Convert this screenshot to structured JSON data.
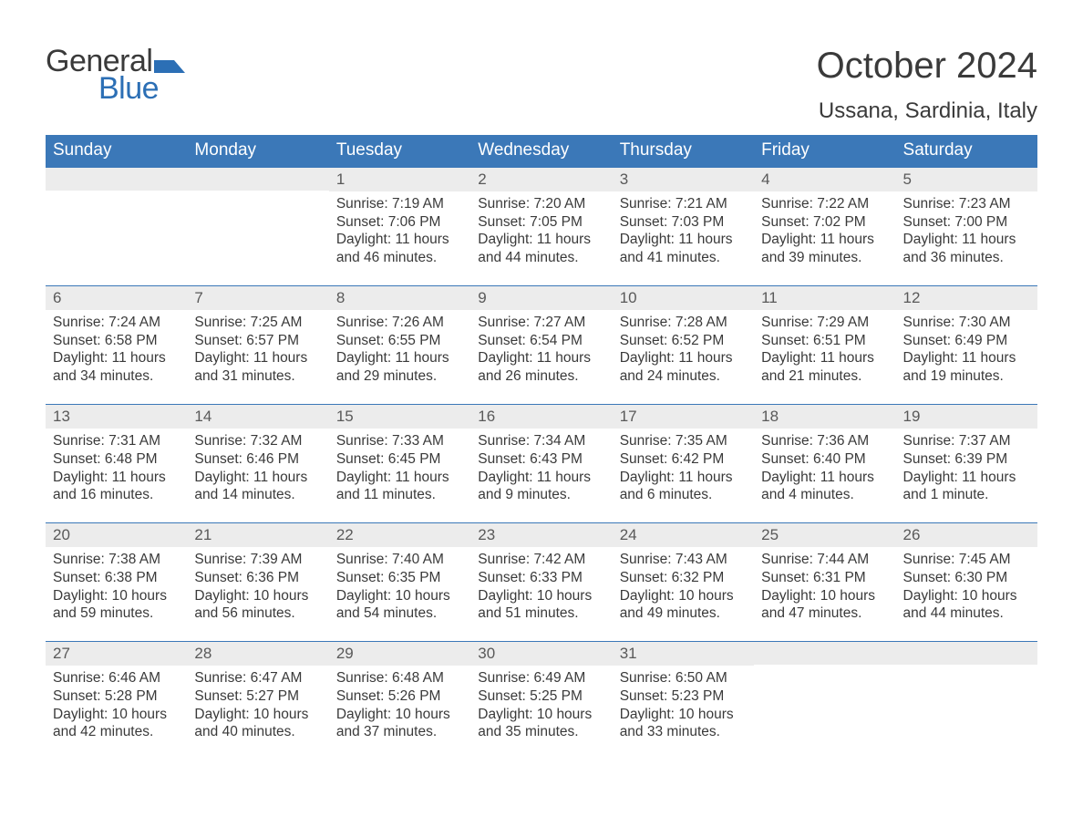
{
  "brand": {
    "word1": "General",
    "word2": "Blue",
    "flag_color": "#2c6fb5"
  },
  "header": {
    "month_title": "October 2024",
    "location": "Ussana, Sardinia, Italy"
  },
  "colors": {
    "header_bar_bg": "#3b78b8",
    "header_bar_text": "#ffffff",
    "day_band_bg": "#ececec",
    "week_divider": "#3b78b8",
    "body_text": "#3a3a3a"
  },
  "weekdays": [
    "Sunday",
    "Monday",
    "Tuesday",
    "Wednesday",
    "Thursday",
    "Friday",
    "Saturday"
  ],
  "weeks": [
    [
      null,
      null,
      {
        "n": "1",
        "sr": "7:19 AM",
        "ss": "7:06 PM",
        "dl": "11 hours and 46 minutes."
      },
      {
        "n": "2",
        "sr": "7:20 AM",
        "ss": "7:05 PM",
        "dl": "11 hours and 44 minutes."
      },
      {
        "n": "3",
        "sr": "7:21 AM",
        "ss": "7:03 PM",
        "dl": "11 hours and 41 minutes."
      },
      {
        "n": "4",
        "sr": "7:22 AM",
        "ss": "7:02 PM",
        "dl": "11 hours and 39 minutes."
      },
      {
        "n": "5",
        "sr": "7:23 AM",
        "ss": "7:00 PM",
        "dl": "11 hours and 36 minutes."
      }
    ],
    [
      {
        "n": "6",
        "sr": "7:24 AM",
        "ss": "6:58 PM",
        "dl": "11 hours and 34 minutes."
      },
      {
        "n": "7",
        "sr": "7:25 AM",
        "ss": "6:57 PM",
        "dl": "11 hours and 31 minutes."
      },
      {
        "n": "8",
        "sr": "7:26 AM",
        "ss": "6:55 PM",
        "dl": "11 hours and 29 minutes."
      },
      {
        "n": "9",
        "sr": "7:27 AM",
        "ss": "6:54 PM",
        "dl": "11 hours and 26 minutes."
      },
      {
        "n": "10",
        "sr": "7:28 AM",
        "ss": "6:52 PM",
        "dl": "11 hours and 24 minutes."
      },
      {
        "n": "11",
        "sr": "7:29 AM",
        "ss": "6:51 PM",
        "dl": "11 hours and 21 minutes."
      },
      {
        "n": "12",
        "sr": "7:30 AM",
        "ss": "6:49 PM",
        "dl": "11 hours and 19 minutes."
      }
    ],
    [
      {
        "n": "13",
        "sr": "7:31 AM",
        "ss": "6:48 PM",
        "dl": "11 hours and 16 minutes."
      },
      {
        "n": "14",
        "sr": "7:32 AM",
        "ss": "6:46 PM",
        "dl": "11 hours and 14 minutes."
      },
      {
        "n": "15",
        "sr": "7:33 AM",
        "ss": "6:45 PM",
        "dl": "11 hours and 11 minutes."
      },
      {
        "n": "16",
        "sr": "7:34 AM",
        "ss": "6:43 PM",
        "dl": "11 hours and 9 minutes."
      },
      {
        "n": "17",
        "sr": "7:35 AM",
        "ss": "6:42 PM",
        "dl": "11 hours and 6 minutes."
      },
      {
        "n": "18",
        "sr": "7:36 AM",
        "ss": "6:40 PM",
        "dl": "11 hours and 4 minutes."
      },
      {
        "n": "19",
        "sr": "7:37 AM",
        "ss": "6:39 PM",
        "dl": "11 hours and 1 minute."
      }
    ],
    [
      {
        "n": "20",
        "sr": "7:38 AM",
        "ss": "6:38 PM",
        "dl": "10 hours and 59 minutes."
      },
      {
        "n": "21",
        "sr": "7:39 AM",
        "ss": "6:36 PM",
        "dl": "10 hours and 56 minutes."
      },
      {
        "n": "22",
        "sr": "7:40 AM",
        "ss": "6:35 PM",
        "dl": "10 hours and 54 minutes."
      },
      {
        "n": "23",
        "sr": "7:42 AM",
        "ss": "6:33 PM",
        "dl": "10 hours and 51 minutes."
      },
      {
        "n": "24",
        "sr": "7:43 AM",
        "ss": "6:32 PM",
        "dl": "10 hours and 49 minutes."
      },
      {
        "n": "25",
        "sr": "7:44 AM",
        "ss": "6:31 PM",
        "dl": "10 hours and 47 minutes."
      },
      {
        "n": "26",
        "sr": "7:45 AM",
        "ss": "6:30 PM",
        "dl": "10 hours and 44 minutes."
      }
    ],
    [
      {
        "n": "27",
        "sr": "6:46 AM",
        "ss": "5:28 PM",
        "dl": "10 hours and 42 minutes."
      },
      {
        "n": "28",
        "sr": "6:47 AM",
        "ss": "5:27 PM",
        "dl": "10 hours and 40 minutes."
      },
      {
        "n": "29",
        "sr": "6:48 AM",
        "ss": "5:26 PM",
        "dl": "10 hours and 37 minutes."
      },
      {
        "n": "30",
        "sr": "6:49 AM",
        "ss": "5:25 PM",
        "dl": "10 hours and 35 minutes."
      },
      {
        "n": "31",
        "sr": "6:50 AM",
        "ss": "5:23 PM",
        "dl": "10 hours and 33 minutes."
      },
      null,
      null
    ]
  ],
  "labels": {
    "sunrise": "Sunrise: ",
    "sunset": "Sunset: ",
    "daylight": "Daylight: "
  }
}
